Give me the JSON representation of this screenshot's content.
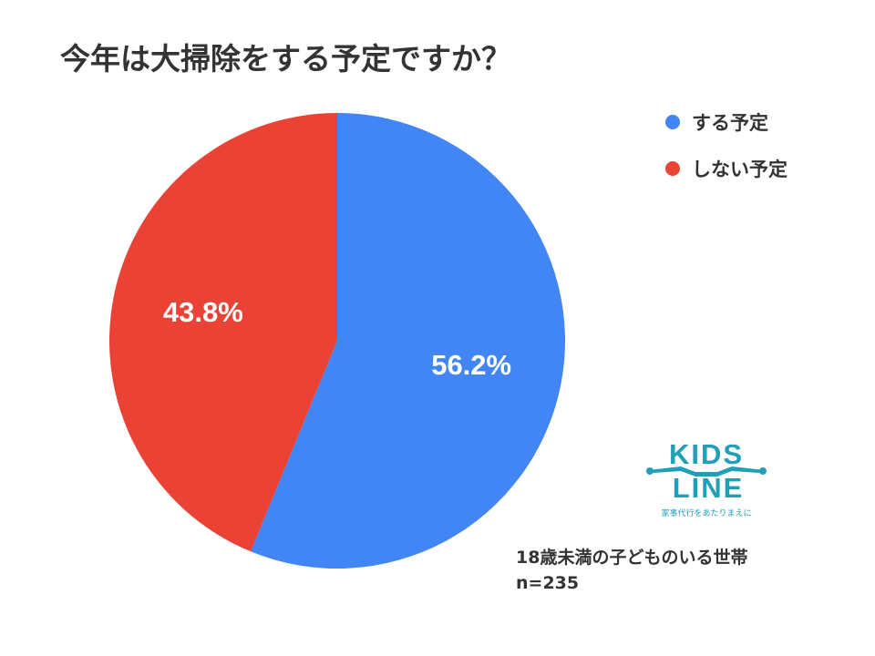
{
  "title": "今年は大掃除をする予定ですか？",
  "chart_data": {
    "type": "pie",
    "categories": [
      "する予定",
      "しない予定"
    ],
    "values": [
      56.2,
      43.8
    ],
    "data_labels": [
      "56.2%",
      "43.8%"
    ],
    "colors": [
      "#4285f4",
      "#ea4335"
    ],
    "legend_position": "top-right",
    "start": "12 o'clock, clockwise"
  },
  "legend": {
    "items": [
      {
        "label": "する予定",
        "color": "#4285f4"
      },
      {
        "label": "しない予定",
        "color": "#ea4335"
      }
    ]
  },
  "logo": {
    "line1": "KIDS",
    "line2": "LINE",
    "tagline": "家事代行をあたりまえに",
    "color": "#1f9fb8"
  },
  "note": {
    "line1": "18歳未満の子どものいる世帯",
    "line2": "n=235"
  }
}
